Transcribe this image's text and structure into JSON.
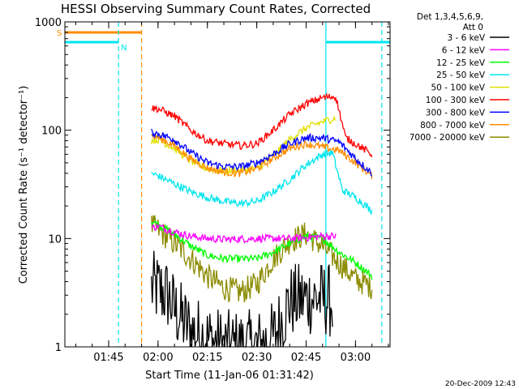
{
  "chart_data": {
    "type": "line",
    "title": "HESSI Observing Summary Count Rates, Corrected",
    "xlabel": "Start Time (11-Jan-06 01:31:42)",
    "ylabel": "Corrected Count Rate (s⁻¹ detector⁻¹)",
    "yscale": "log",
    "ylim": [
      1,
      1000
    ],
    "y_ticks": [
      1,
      10,
      100,
      1000
    ],
    "xlim": [
      "01:31:42",
      "03:10:30"
    ],
    "x_ticks": [
      "01:45",
      "02:00",
      "02:15",
      "02:30",
      "02:45",
      "03:00"
    ],
    "grid": false,
    "legend_placement": "top-right, outside plot",
    "legend_header": [
      "Det 1,3,4,5,6,9,",
      "Att 0"
    ],
    "footer_date": "20-Dec-2009 12:43",
    "series": [
      {
        "name": "3 - 6 keV",
        "color": "#000000",
        "x": [
          "01:58",
          "02:00",
          "02:03",
          "02:05",
          "02:10",
          "02:20",
          "02:30",
          "02:35",
          "02:40",
          "02:45",
          "02:50",
          "02:53"
        ],
        "y": [
          3.5,
          3.4,
          3.0,
          2.2,
          1.4,
          1.0,
          1.0,
          1.2,
          2.6,
          2.8,
          2.8,
          2.6
        ]
      },
      {
        "name": "6 - 12 keV",
        "color": "#ff00ff",
        "x": [
          "01:58",
          "02:00",
          "02:05",
          "02:10",
          "02:15",
          "02:20",
          "02:30",
          "02:40",
          "02:45",
          "02:50",
          "02:54"
        ],
        "y": [
          12.5,
          13.0,
          11.5,
          10.5,
          10.0,
          9.8,
          10.0,
          10.0,
          10.2,
          10.5,
          10.5
        ]
      },
      {
        "name": "12 - 25 keV",
        "color": "#00ff00",
        "x": [
          "01:58",
          "02:00",
          "02:05",
          "02:10",
          "02:15",
          "02:20",
          "02:30",
          "02:35",
          "02:40",
          "02:45",
          "02:50",
          "02:55",
          "03:00",
          "03:05"
        ],
        "y": [
          14.5,
          13.5,
          11.0,
          8.5,
          7.0,
          6.5,
          6.5,
          7.5,
          9.0,
          10.5,
          10.0,
          7.5,
          6.0,
          4.5
        ]
      },
      {
        "name": "25 - 50 keV",
        "color": "#00e5ee",
        "x": [
          "01:58",
          "02:00",
          "02:05",
          "02:10",
          "02:15",
          "02:20",
          "02:25",
          "02:30",
          "02:35",
          "02:40",
          "02:45",
          "02:50",
          "02:53",
          "02:56",
          "03:00",
          "03:05"
        ],
        "y": [
          40,
          38,
          32,
          27,
          24,
          22,
          21,
          22,
          27,
          35,
          48,
          60,
          62,
          28,
          24,
          18
        ]
      },
      {
        "name": "50 - 100 keV",
        "color": "#e0e000",
        "x": [
          "01:58",
          "02:00",
          "02:05",
          "02:10",
          "02:15",
          "02:20",
          "02:30",
          "02:35",
          "02:40",
          "02:45",
          "02:50",
          "02:54"
        ],
        "y": [
          80,
          82,
          68,
          52,
          44,
          42,
          44,
          58,
          82,
          105,
          120,
          130
        ]
      },
      {
        "name": "100 - 300 keV",
        "color": "#ff0000",
        "x": [
          "01:58",
          "02:00",
          "02:05",
          "02:10",
          "02:15",
          "02:20",
          "02:25",
          "02:30",
          "02:35",
          "02:40",
          "02:45",
          "02:50",
          "02:54",
          "02:57",
          "03:00",
          "03:05"
        ],
        "y": [
          160,
          158,
          135,
          100,
          80,
          75,
          72,
          75,
          100,
          140,
          175,
          200,
          205,
          85,
          75,
          60
        ]
      },
      {
        "name": "300 - 800 keV",
        "color": "#0000ff",
        "x": [
          "01:58",
          "02:00",
          "02:05",
          "02:10",
          "02:15",
          "02:20",
          "02:25",
          "02:30",
          "02:35",
          "02:40",
          "02:45",
          "02:50",
          "02:55",
          "03:00",
          "03:05"
        ],
        "y": [
          95,
          93,
          82,
          62,
          50,
          46,
          46,
          50,
          60,
          75,
          85,
          85,
          78,
          55,
          40
        ]
      },
      {
        "name": "800 - 7000 keV",
        "color": "#ff8c00",
        "x": [
          "01:58",
          "02:00",
          "02:05",
          "02:10",
          "02:15",
          "02:20",
          "02:25",
          "02:30",
          "02:35",
          "02:40",
          "02:45",
          "02:50",
          "02:55",
          "03:00",
          "03:05"
        ],
        "y": [
          88,
          86,
          72,
          54,
          45,
          41,
          40,
          44,
          55,
          68,
          75,
          70,
          65,
          50,
          38
        ]
      },
      {
        "name": "7000 - 20000 keV",
        "color": "#8b8b00",
        "x": [
          "01:58",
          "02:00",
          "02:05",
          "02:10",
          "02:15",
          "02:20",
          "02:25",
          "02:30",
          "02:35",
          "02:40",
          "02:45",
          "02:50",
          "02:55",
          "03:00",
          "03:05"
        ],
        "y": [
          13,
          12,
          9,
          6.5,
          4.5,
          3.5,
          3.2,
          3.8,
          6.5,
          9.5,
          11,
          8.5,
          6.0,
          4.2,
          3.6
        ]
      }
    ],
    "annotations": [
      {
        "type": "state_bar",
        "label": "S",
        "color": "#ff8c00",
        "level": 800,
        "x_from": "01:31:42",
        "x_to": "01:55"
      },
      {
        "type": "state_bar",
        "label": "N",
        "color": "#00e5ee",
        "level": 650,
        "x_from": "01:31:42",
        "x_to": "01:48"
      },
      {
        "type": "state_bar",
        "label": "",
        "color": "#00e5ee",
        "level": 650,
        "x_from": "02:51",
        "x_to": "03:10:30"
      },
      {
        "type": "vline",
        "color": "#00e5ee",
        "style": "dashed",
        "x": "01:48"
      },
      {
        "type": "vline",
        "color": "#ff8c00",
        "style": "dashed",
        "x": "01:55"
      },
      {
        "type": "vline",
        "color": "#00e5ee",
        "style": "solid",
        "x": "02:51"
      },
      {
        "type": "vline",
        "color": "#00e5ee",
        "style": "dashed",
        "x": "03:08"
      }
    ]
  }
}
